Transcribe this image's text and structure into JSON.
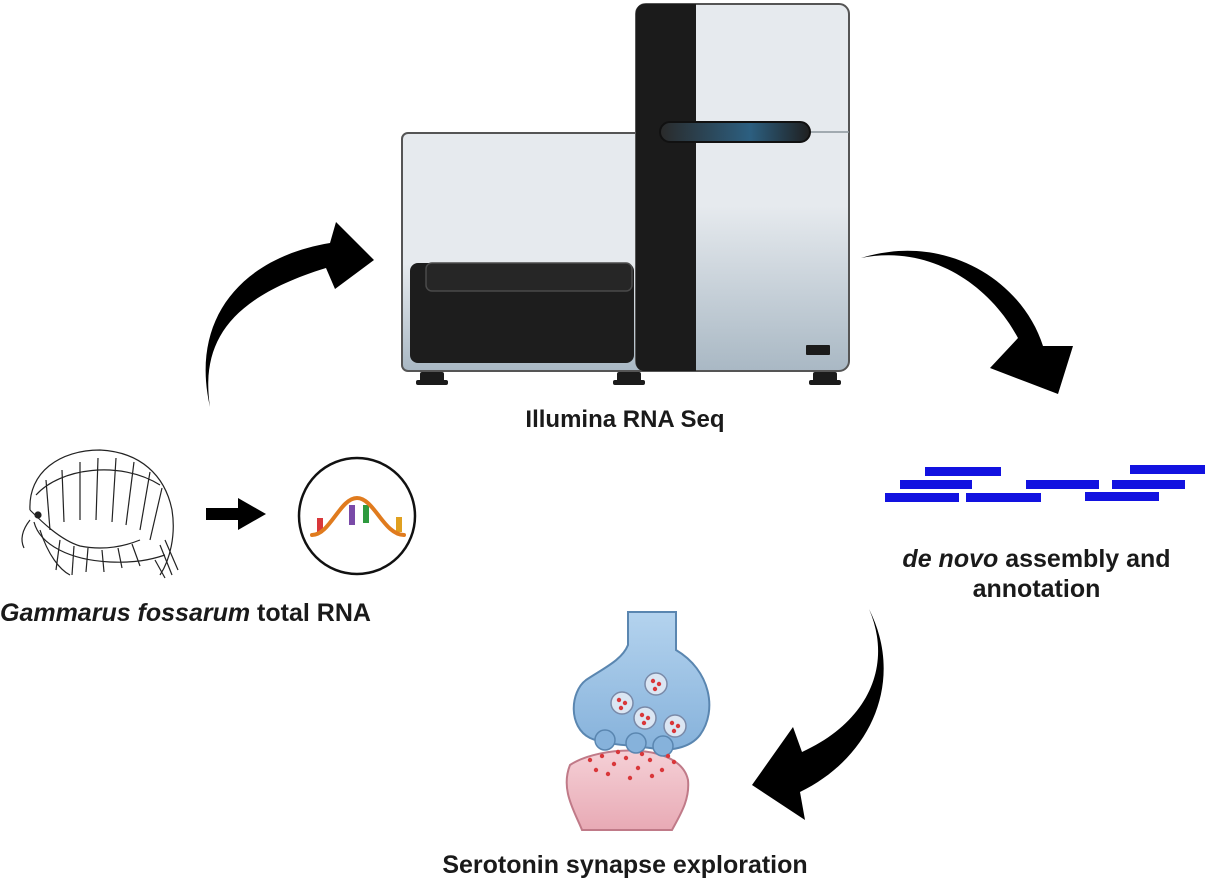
{
  "steps": {
    "sequencing": {
      "label": "Illumina RNA Seq"
    },
    "source": {
      "species": "Gammarus fossarum",
      "suffix": " total RNA"
    },
    "assembly": {
      "italic": "de novo",
      "line1_rest": " assembly and",
      "line2": "annotation"
    },
    "exploration": {
      "label": "Serotonin synapse exploration"
    }
  },
  "colors": {
    "arrow": "#000000",
    "reads": "#1212e0",
    "sequencer_panel": "#e3e7ec",
    "sequencer_dark": "#1b1b1b",
    "neuron_presynaptic": "#9cc3e4",
    "neuron_postsynaptic": "#f0c0c8",
    "rna_strand": "#e07b1e"
  },
  "icons": {
    "organism": "amphipod-sketch-icon",
    "rna": "rna-strand-icon",
    "instrument": "sequencer-icon",
    "reads": "sequence-reads-icon",
    "synapse": "synapse-icon"
  }
}
